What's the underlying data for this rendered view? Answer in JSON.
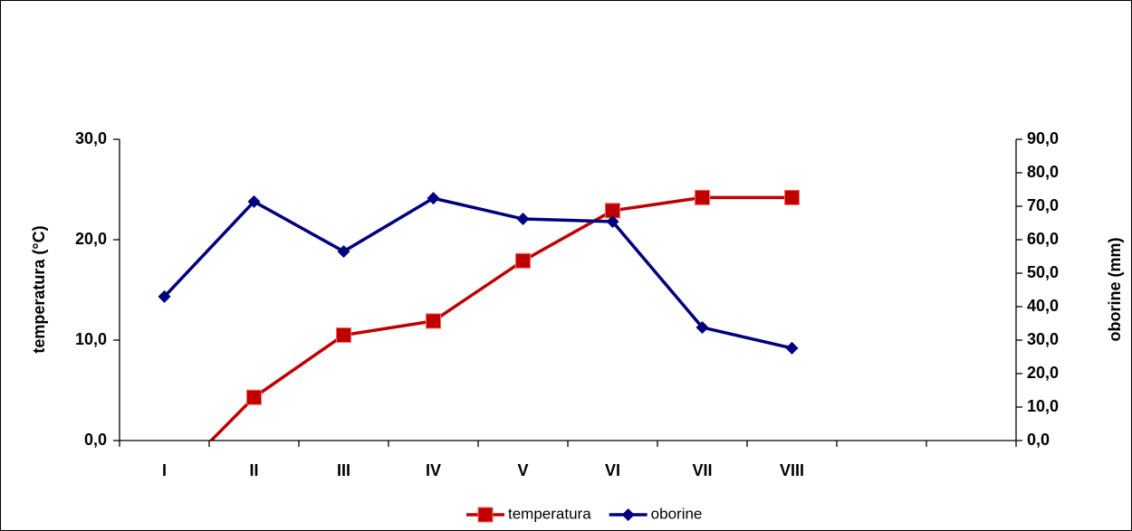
{
  "chart_data": {
    "type": "line",
    "categories": [
      "I",
      "II",
      "III",
      "IV",
      "V",
      "VI",
      "VII",
      "VIII",
      null,
      null
    ],
    "series": [
      {
        "name": "temperatura",
        "color": "#c00000",
        "marker": "square",
        "values": [
          -4.7,
          4.3,
          10.5,
          11.9,
          17.9,
          22.9,
          24.2,
          24.2,
          null,
          null
        ]
      },
      {
        "name": "oborine",
        "color": "#00007f",
        "marker": "diamond",
        "axis": "y2",
        "values": [
          43.0,
          71.4,
          56.5,
          72.4,
          66.2,
          65.4,
          33.8,
          27.6,
          null,
          null
        ]
      }
    ],
    "ylabel": "temperatura (°C)",
    "y2label": "oborine (mm)",
    "ylim": [
      0,
      30
    ],
    "yticks": [
      {
        "value": 0,
        "label": "0,0"
      },
      {
        "value": 10,
        "label": "10,0"
      },
      {
        "value": 20,
        "label": "20,0"
      },
      {
        "value": 30,
        "label": "30,0"
      }
    ],
    "y2lim": [
      0,
      90
    ],
    "y2ticks": [
      {
        "value": 0,
        "label": "0,0"
      },
      {
        "value": 10,
        "label": "10,0"
      },
      {
        "value": 20,
        "label": "20,0"
      },
      {
        "value": 30,
        "label": "30,0"
      },
      {
        "value": 40,
        "label": "40,0"
      },
      {
        "value": 50,
        "label": "50,0"
      },
      {
        "value": 60,
        "label": "60,0"
      },
      {
        "value": 70,
        "label": "70,0"
      },
      {
        "value": 80,
        "label": "80,0"
      },
      {
        "value": 90,
        "label": "90,0"
      }
    ],
    "legend": "bottom"
  }
}
